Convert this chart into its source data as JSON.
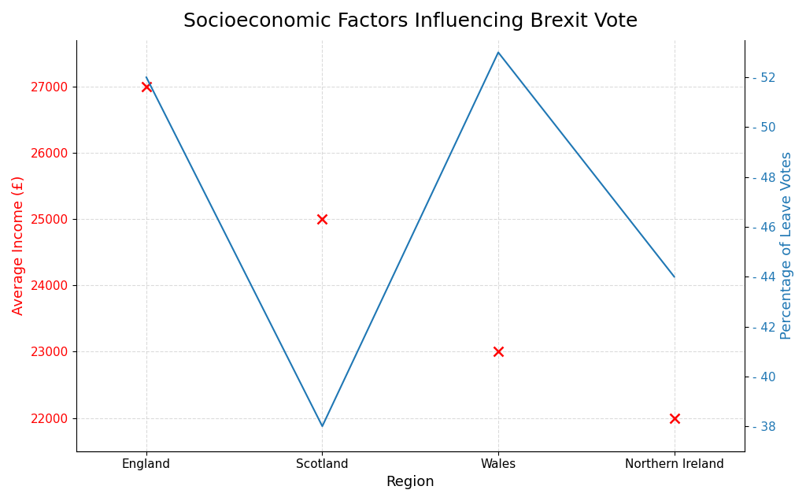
{
  "title": "Socioeconomic Factors Influencing Brexit Vote",
  "regions": [
    "England",
    "Scotland",
    "Wales",
    "Northern Ireland"
  ],
  "avg_income": [
    27000,
    25000,
    23000,
    22000
  ],
  "leave_pct": [
    52,
    38,
    53,
    44
  ],
  "income_color": "#ff0000",
  "leave_color": "#1f77b4",
  "xlabel": "Region",
  "ylabel_left": "Average Income (£)",
  "ylabel_right": "Percentage of Leave Votes",
  "ylim_left": [
    21500,
    27700
  ],
  "ylim_right": [
    37,
    53.5
  ],
  "yticks_left": [
    22000,
    23000,
    24000,
    25000,
    26000,
    27000
  ],
  "yticks_right": [
    38,
    40,
    42,
    44,
    46,
    48,
    50,
    52
  ],
  "title_fontsize": 18,
  "label_fontsize": 13,
  "tick_fontsize": 11,
  "background_color": "#ffffff"
}
